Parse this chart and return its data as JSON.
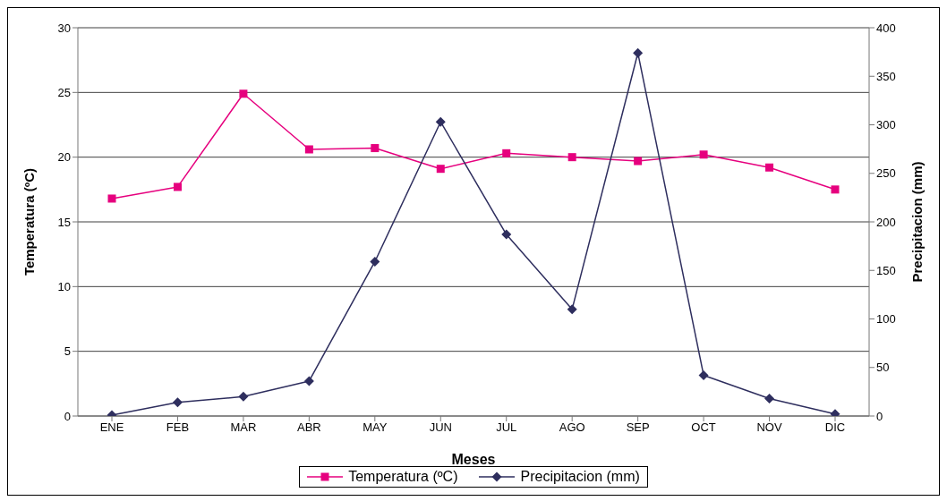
{
  "chart_data": {
    "type": "line",
    "xlabel": "Meses",
    "ylabel": "Temperatura (ºC)",
    "y2label": "Precipitacion (mm)",
    "categories": [
      "ENE",
      "FEB",
      "MAR",
      "ABR",
      "MAY",
      "JUN",
      "JUL",
      "AGO",
      "SEP",
      "OCT",
      "NOV",
      "DIC"
    ],
    "series": [
      {
        "name": "Temperatura (ºC)",
        "color": "#e6007e",
        "marker": "square",
        "values": [
          16.8,
          17.7,
          24.9,
          20.6,
          20.7,
          19.1,
          20.3,
          20.0,
          19.7,
          20.2,
          19.2,
          17.5
        ]
      },
      {
        "name": "Precipitacion (mm)",
        "color": "#2e2e5e",
        "marker": "diamond",
        "axis": "y2",
        "values": [
          1,
          14,
          20,
          36,
          159,
          303,
          187,
          110,
          374,
          42,
          18,
          2
        ]
      }
    ],
    "ylim": [
      0,
      30
    ],
    "yticks": [
      0,
      5,
      10,
      15,
      20,
      25,
      30
    ],
    "y2lim": [
      0,
      400
    ],
    "y2ticks": [
      0,
      50,
      100,
      150,
      200,
      250,
      300,
      350,
      400
    ],
    "grid": "y",
    "legend": "bottom"
  }
}
